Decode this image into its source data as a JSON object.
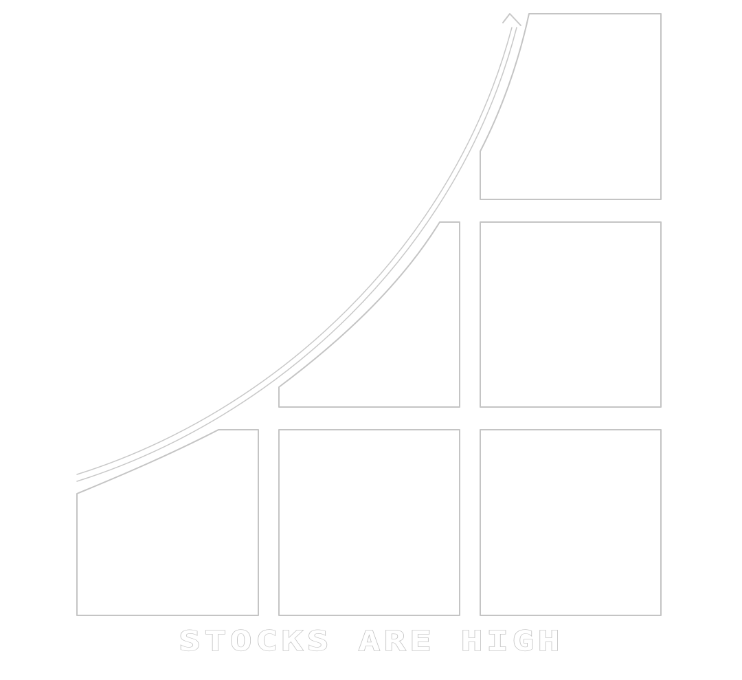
{
  "caption": "STOCKS ARE HIGH",
  "colors": {
    "background": "#ffffff",
    "outline": "#c4c4c4"
  }
}
